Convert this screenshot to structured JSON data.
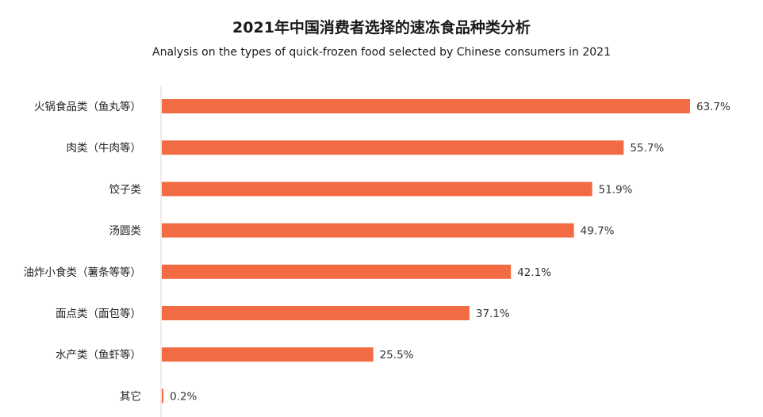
{
  "chart_data": {
    "type": "bar",
    "orientation": "horizontal",
    "title": "2021年中国消费者选择的速冻食品种类分析",
    "subtitle": "Analysis on the types of quick-frozen food selected by Chinese consumers in 2021",
    "categories": [
      "火锅食品类（鱼丸等）",
      "肉类（牛肉等）",
      "饺子类",
      "汤圆类",
      "油炸小食类（薯条等等）",
      "面点类（面包等）",
      "水产类（鱼虾等）",
      "其它"
    ],
    "values": [
      63.7,
      55.7,
      51.9,
      49.7,
      42.1,
      37.1,
      25.5,
      0.2
    ],
    "value_labels": [
      "63.7%",
      "55.7%",
      "51.9%",
      "49.7%",
      "42.1%",
      "37.1%",
      "25.5%",
      "0.2%"
    ],
    "unit": "%",
    "xlim": [
      0,
      63.7
    ],
    "bar_color": "#f26b43",
    "axis_color": "#d9d9d9",
    "grid": false,
    "legend": "none"
  }
}
